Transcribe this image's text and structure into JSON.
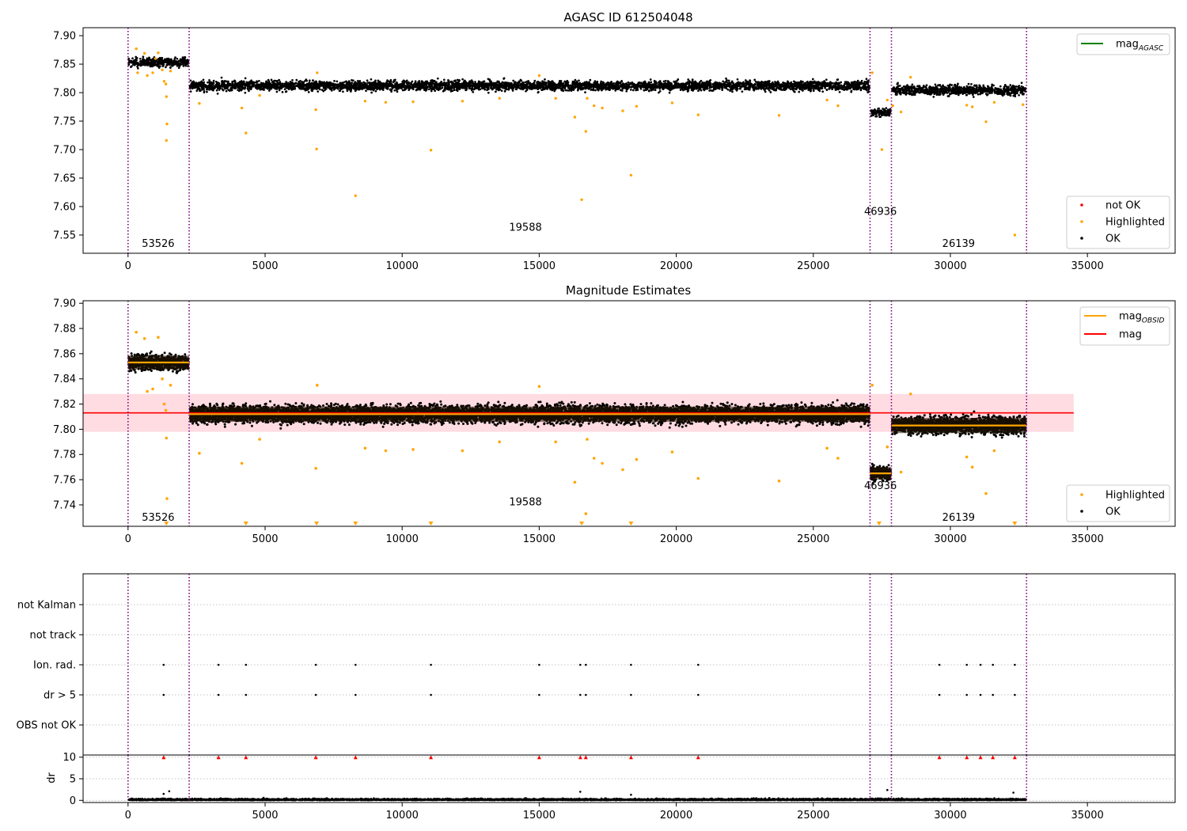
{
  "colors": {
    "obsid_line": "#800080",
    "ok": "#000000",
    "highlighted": "#ffa500",
    "not_ok": "#ff0000",
    "mag_agasc": "#008000",
    "mag_obsid": "#ffa500",
    "mag": "#ff0000",
    "mag_band": "#ffc0cb",
    "grid": "#b0b0b0"
  },
  "chart_data": [
    {
      "type": "scatter",
      "title": "AGASC ID 612504048",
      "xlim": [
        -1640,
        38200
      ],
      "ylim": [
        7.518,
        7.914
      ],
      "xticks": [
        0,
        5000,
        10000,
        15000,
        20000,
        25000,
        30000,
        35000
      ],
      "xtick_labels": [
        "0",
        "5000",
        "10000",
        "15000",
        "20000",
        "25000",
        "30000",
        "35000"
      ],
      "yticks": [
        7.55,
        7.6,
        7.65,
        7.7,
        7.75,
        7.8,
        7.85,
        7.9
      ],
      "ytick_labels": [
        "7.55",
        "7.60",
        "7.65",
        "7.70",
        "7.75",
        "7.80",
        "7.85",
        "7.90"
      ],
      "obsid_boundaries": [
        0,
        2230,
        27070,
        27850,
        32780
      ],
      "segments": [
        {
          "x": [
            0,
            2230
          ],
          "center": 7.853,
          "spread": 0.013
        },
        {
          "x": [
            2230,
            27070
          ],
          "center": 7.812,
          "spread": 0.014
        },
        {
          "x": [
            27070,
            27850
          ],
          "center": 7.765,
          "spread": 0.011
        },
        {
          "x": [
            27850,
            32780
          ],
          "center": 7.804,
          "spread": 0.014
        }
      ],
      "obsid_labels": [
        {
          "text": "53526",
          "x": 1100,
          "y": 7.535
        },
        {
          "text": "19588",
          "x": 14500,
          "y": 7.563
        },
        {
          "text": "46936",
          "x": 27450,
          "y": 7.591
        },
        {
          "text": "26139",
          "x": 30300,
          "y": 7.535
        }
      ],
      "highlighted_points": [
        [
          300,
          7.877
        ],
        [
          350,
          7.835
        ],
        [
          600,
          7.869
        ],
        [
          700,
          7.83
        ],
        [
          900,
          7.835
        ],
        [
          1000,
          7.86
        ],
        [
          1100,
          7.87
        ],
        [
          1250,
          7.84
        ],
        [
          1320,
          7.82
        ],
        [
          1380,
          7.815
        ],
        [
          1400,
          7.793
        ],
        [
          1420,
          7.745
        ],
        [
          1400,
          7.716
        ],
        [
          1550,
          7.838
        ],
        [
          2600,
          7.781
        ],
        [
          4150,
          7.773
        ],
        [
          4300,
          7.729
        ],
        [
          4800,
          7.795
        ],
        [
          6850,
          7.77
        ],
        [
          6880,
          7.701
        ],
        [
          6900,
          7.835
        ],
        [
          8300,
          7.619
        ],
        [
          8650,
          7.785
        ],
        [
          9400,
          7.783
        ],
        [
          11050,
          7.699
        ],
        [
          10400,
          7.784
        ],
        [
          12200,
          7.785
        ],
        [
          13550,
          7.79
        ],
        [
          15000,
          7.83
        ],
        [
          15600,
          7.79
        ],
        [
          16300,
          7.757
        ],
        [
          16550,
          7.612
        ],
        [
          16700,
          7.732
        ],
        [
          16750,
          7.79
        ],
        [
          17000,
          7.777
        ],
        [
          17300,
          7.773
        ],
        [
          18050,
          7.768
        ],
        [
          18350,
          7.655
        ],
        [
          18550,
          7.776
        ],
        [
          19850,
          7.782
        ],
        [
          20800,
          7.761
        ],
        [
          23750,
          7.76
        ],
        [
          25500,
          7.787
        ],
        [
          25900,
          7.777
        ],
        [
          27150,
          7.835
        ],
        [
          27500,
          7.7
        ],
        [
          27700,
          7.787
        ],
        [
          27900,
          7.777
        ],
        [
          28200,
          7.766
        ],
        [
          28550,
          7.827
        ],
        [
          30600,
          7.778
        ],
        [
          30800,
          7.775
        ],
        [
          31300,
          7.749
        ],
        [
          31600,
          7.783
        ],
        [
          32350,
          7.55
        ],
        [
          32650,
          7.779
        ]
      ],
      "legends": [
        {
          "position": "upper right",
          "entries": [
            {
              "label": "mag",
              "subscript": "AGASC",
              "marker": "line",
              "color": "#008000"
            }
          ]
        },
        {
          "position": "lower right",
          "entries": [
            {
              "label": "not OK",
              "marker": "dot",
              "color": "#ff0000"
            },
            {
              "label": "Highlighted",
              "marker": "dot",
              "color": "#ffa500"
            },
            {
              "label": "OK",
              "marker": "dot",
              "color": "#000000"
            }
          ]
        }
      ]
    },
    {
      "type": "scatter",
      "title": "Magnitude Estimates",
      "xlim": [
        -1640,
        38200
      ],
      "ylim": [
        7.723,
        7.902
      ],
      "xticks": [
        0,
        5000,
        10000,
        15000,
        20000,
        25000,
        30000,
        35000
      ],
      "xtick_labels": [
        "0",
        "5000",
        "10000",
        "15000",
        "20000",
        "25000",
        "30000",
        "35000"
      ],
      "yticks": [
        7.74,
        7.76,
        7.78,
        7.8,
        7.82,
        7.84,
        7.86,
        7.88,
        7.9
      ],
      "ytick_labels": [
        "7.74",
        "7.76",
        "7.78",
        "7.80",
        "7.82",
        "7.84",
        "7.86",
        "7.88",
        "7.90"
      ],
      "obsid_boundaries": [
        0,
        2230,
        27070,
        27850,
        32780
      ],
      "mag": 7.813,
      "mag_band": [
        7.798,
        7.828
      ],
      "mag_line_x": [
        -1640,
        34500
      ],
      "segments": [
        {
          "x": [
            0,
            2230
          ],
          "mag_obsid": 7.853,
          "center": 7.853,
          "spread": 0.01
        },
        {
          "x": [
            2230,
            27070
          ],
          "mag_obsid": 7.812,
          "center": 7.812,
          "spread": 0.011
        },
        {
          "x": [
            27070,
            27850
          ],
          "mag_obsid": 7.765,
          "center": 7.765,
          "spread": 0.009
        },
        {
          "x": [
            27850,
            32780
          ],
          "mag_obsid": 7.803,
          "center": 7.803,
          "spread": 0.011
        }
      ],
      "obsid_labels": [
        {
          "text": "53526",
          "x": 1100,
          "y": 7.73
        },
        {
          "text": "19588",
          "x": 14500,
          "y": 7.742
        },
        {
          "text": "46936",
          "x": 27450,
          "y": 7.755
        },
        {
          "text": "26139",
          "x": 30300,
          "y": 7.73
        }
      ],
      "highlighted_points": [
        [
          300,
          7.877
        ],
        [
          600,
          7.872
        ],
        [
          700,
          7.83
        ],
        [
          900,
          7.832
        ],
        [
          1100,
          7.873
        ],
        [
          1250,
          7.84
        ],
        [
          1320,
          7.82
        ],
        [
          1380,
          7.815
        ],
        [
          1400,
          7.793
        ],
        [
          1420,
          7.745
        ],
        [
          1550,
          7.835
        ],
        [
          2600,
          7.781
        ],
        [
          4150,
          7.773
        ],
        [
          4800,
          7.792
        ],
        [
          6850,
          7.769
        ],
        [
          6900,
          7.835
        ],
        [
          8650,
          7.785
        ],
        [
          9400,
          7.783
        ],
        [
          10400,
          7.784
        ],
        [
          12200,
          7.783
        ],
        [
          13550,
          7.79
        ],
        [
          15000,
          7.834
        ],
        [
          15600,
          7.79
        ],
        [
          16300,
          7.758
        ],
        [
          16700,
          7.733
        ],
        [
          16750,
          7.792
        ],
        [
          17000,
          7.777
        ],
        [
          17300,
          7.773
        ],
        [
          18050,
          7.768
        ],
        [
          18550,
          7.776
        ],
        [
          19850,
          7.782
        ],
        [
          20800,
          7.761
        ],
        [
          23750,
          7.759
        ],
        [
          25500,
          7.785
        ],
        [
          25900,
          7.777
        ],
        [
          27150,
          7.835
        ],
        [
          27700,
          7.786
        ],
        [
          28200,
          7.766
        ],
        [
          28550,
          7.828
        ],
        [
          30600,
          7.778
        ],
        [
          30800,
          7.77
        ],
        [
          31300,
          7.749
        ],
        [
          31600,
          7.783
        ]
      ],
      "off_scale_points_x": [
        1400,
        4300,
        6880,
        8300,
        11050,
        16550,
        18350,
        27400,
        32350
      ],
      "legends": [
        {
          "position": "upper right",
          "entries": [
            {
              "label": "mag",
              "subscript": "OBSID",
              "marker": "line",
              "color": "#ffa500"
            },
            {
              "label": "mag",
              "marker": "line",
              "color": "#ff0000"
            }
          ]
        },
        {
          "position": "lower right",
          "entries": [
            {
              "label": "Highlighted",
              "marker": "dot",
              "color": "#ffa500"
            },
            {
              "label": "OK",
              "marker": "dot",
              "color": "#000000"
            }
          ]
        }
      ]
    },
    {
      "type": "scatter",
      "title": "",
      "xlim": [
        -1640,
        38200
      ],
      "obsid_boundaries": [
        0,
        2230,
        27070,
        27850,
        32780
      ],
      "categories": [
        "not Kalman",
        "not track",
        "Ion. rad.",
        "dr > 5",
        "OBS not OK"
      ],
      "flags": [
        {
          "category": "Ion. rad.",
          "x": [
            1300,
            3300,
            4300,
            6850,
            8300,
            11050,
            15000,
            16500,
            16700,
            18350,
            20800,
            29600,
            30600,
            31100,
            31550,
            32350
          ]
        },
        {
          "category": "dr > 5",
          "x": [
            1300,
            3300,
            4300,
            6850,
            8300,
            11050,
            15000,
            16500,
            16700,
            18350,
            20800,
            29600,
            30600,
            31100,
            31550,
            32350
          ]
        }
      ]
    },
    {
      "type": "scatter",
      "title": "",
      "ylabel": "dr",
      "xlim": [
        -1640,
        38200
      ],
      "ylim": [
        -0.5,
        10.5
      ],
      "xticks": [
        0,
        5000,
        10000,
        15000,
        20000,
        25000,
        30000,
        35000
      ],
      "xtick_labels": [
        "0",
        "5000",
        "10000",
        "15000",
        "20000",
        "25000",
        "30000",
        "35000"
      ],
      "yticks": [
        0,
        5,
        10
      ],
      "ytick_labels": [
        "0",
        "5",
        "10"
      ],
      "obsid_boundaries": [
        0,
        2230,
        27070,
        27850,
        32780
      ],
      "dr_band": [
        0,
        32780
      ],
      "clipped_points_x": [
        1300,
        3300,
        4300,
        6850,
        8300,
        11050,
        15000,
        16500,
        16700,
        18350,
        20800,
        29600,
        30600,
        31100,
        31550,
        32350
      ],
      "clipped_value": 10,
      "dr_outliers": [
        [
          1300,
          1.5
        ],
        [
          1500,
          2.1
        ],
        [
          16500,
          2.0
        ],
        [
          18350,
          1.3
        ],
        [
          27700,
          2.4
        ],
        [
          32300,
          1.8
        ]
      ]
    }
  ]
}
